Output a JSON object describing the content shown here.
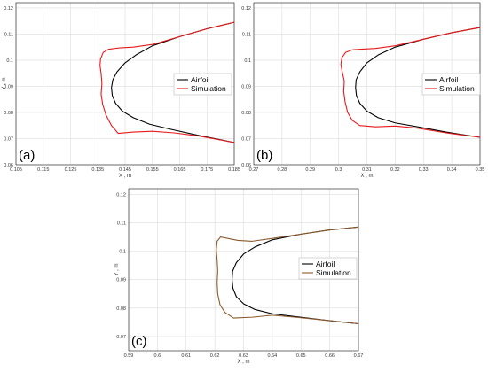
{
  "colors": {
    "airfoil": "#000000",
    "simulation": "#e8191b",
    "simulation_c": "#8b5a2b",
    "grid": "#dcdcdc",
    "axis": "#333333"
  },
  "chart_data": [
    {
      "type": "line",
      "panel_label": "(a)",
      "xlabel": "X , m",
      "ylabel": "Y , m",
      "xlim": [
        0.105,
        0.185
      ],
      "ylim": [
        0.06,
        0.122
      ],
      "xticks": [
        0.105,
        0.115,
        0.125,
        0.135,
        0.145,
        0.155,
        0.165,
        0.175,
        0.185
      ],
      "xtick_labels": [
        "0.105",
        "0.115",
        "0.125",
        "0.135",
        "0.145",
        "0.155",
        "0.165",
        "0.175",
        "0.185"
      ],
      "yticks": [
        0.06,
        0.07,
        0.08,
        0.09,
        0.1,
        0.11,
        0.12
      ],
      "ytick_labels": [
        "0.06",
        "0.07",
        "0.08",
        "0.09",
        "0.1",
        "0.11",
        "0.12"
      ],
      "grid": true,
      "legend": "center-right",
      "series": [
        {
          "name": "Airfoil",
          "x": [
            0.185,
            0.175,
            0.165,
            0.155,
            0.149,
            0.145,
            0.142,
            0.1405,
            0.14,
            0.1403,
            0.1415,
            0.144,
            0.148,
            0.154,
            0.162,
            0.172,
            0.185
          ],
          "y": [
            0.1145,
            0.112,
            0.109,
            0.1055,
            0.102,
            0.099,
            0.0955,
            0.0925,
            0.0895,
            0.0865,
            0.0835,
            0.0805,
            0.078,
            0.0755,
            0.0735,
            0.0712,
            0.0685
          ]
        },
        {
          "name": "Simulation",
          "x": [
            0.185,
            0.175,
            0.165,
            0.155,
            0.148,
            0.143,
            0.139,
            0.137,
            0.136,
            0.1358,
            0.1362,
            0.1365,
            0.1362,
            0.1368,
            0.138,
            0.14,
            0.1425,
            0.148,
            0.155,
            0.163,
            0.172,
            0.185
          ],
          "y": [
            0.1145,
            0.112,
            0.109,
            0.106,
            0.105,
            0.1047,
            0.1042,
            0.103,
            0.1005,
            0.098,
            0.095,
            0.091,
            0.087,
            0.083,
            0.079,
            0.075,
            0.072,
            0.0725,
            0.0728,
            0.0722,
            0.071,
            0.0685
          ]
        }
      ]
    },
    {
      "type": "line",
      "panel_label": "(b)",
      "xlabel": "X , m",
      "ylabel": "",
      "xlim": [
        0.27,
        0.35
      ],
      "ylim": [
        0.06,
        0.122
      ],
      "xticks": [
        0.27,
        0.28,
        0.29,
        0.3,
        0.31,
        0.32,
        0.33,
        0.34,
        0.35
      ],
      "xtick_labels": [
        "0.27",
        "0.28",
        "0.29",
        "0.3",
        "0.31",
        "0.32",
        "0.33",
        "0.34",
        "0.35"
      ],
      "yticks": [
        0.06,
        0.07,
        0.08,
        0.09,
        0.1,
        0.11,
        0.12
      ],
      "ytick_labels": [
        "0.06",
        "0.07",
        "0.08",
        "0.09",
        "0.1",
        "0.11",
        "0.12"
      ],
      "grid": true,
      "legend": "center-right",
      "series": [
        {
          "name": "Airfoil",
          "x": [
            0.35,
            0.34,
            0.33,
            0.32,
            0.314,
            0.31,
            0.3075,
            0.3062,
            0.306,
            0.3063,
            0.3075,
            0.31,
            0.314,
            0.32,
            0.328,
            0.338,
            0.35
          ],
          "y": [
            0.1125,
            0.1105,
            0.108,
            0.105,
            0.102,
            0.099,
            0.0955,
            0.0925,
            0.0895,
            0.0865,
            0.0835,
            0.0805,
            0.078,
            0.076,
            0.0745,
            0.0725,
            0.0705
          ]
        },
        {
          "name": "Simulation",
          "x": [
            0.35,
            0.34,
            0.33,
            0.32,
            0.313,
            0.308,
            0.305,
            0.3025,
            0.3012,
            0.3008,
            0.3012,
            0.302,
            0.3018,
            0.3023,
            0.3032,
            0.3048,
            0.3075,
            0.313,
            0.32,
            0.328,
            0.338,
            0.35
          ],
          "y": [
            0.1125,
            0.1105,
            0.108,
            0.1055,
            0.1045,
            0.1042,
            0.104,
            0.103,
            0.101,
            0.0985,
            0.096,
            0.092,
            0.088,
            0.084,
            0.08,
            0.077,
            0.075,
            0.0745,
            0.0748,
            0.074,
            0.0722,
            0.0705
          ]
        }
      ]
    },
    {
      "type": "line",
      "panel_label": "(c)",
      "xlabel": "X , m",
      "ylabel": "Y , m",
      "xlim": [
        0.59,
        0.67
      ],
      "ylim": [
        0.065,
        0.122
      ],
      "xticks": [
        0.59,
        0.6,
        0.61,
        0.62,
        0.63,
        0.64,
        0.65,
        0.66,
        0.67
      ],
      "xtick_labels": [
        "0.59",
        "0.6",
        "0.61",
        "0.62",
        "0.63",
        "0.64",
        "0.65",
        "0.66",
        "0.67"
      ],
      "yticks": [
        0.07,
        0.08,
        0.09,
        0.1,
        0.11,
        0.12
      ],
      "ytick_labels": [
        "0.07",
        "0.08",
        "0.09",
        "0.1",
        "0.11",
        "0.12"
      ],
      "grid": true,
      "legend": "center-right",
      "series": [
        {
          "name": "Airfoil",
          "x": [
            0.67,
            0.66,
            0.65,
            0.64,
            0.634,
            0.63,
            0.6275,
            0.6262,
            0.626,
            0.6263,
            0.6275,
            0.63,
            0.634,
            0.64,
            0.648,
            0.658,
            0.67
          ],
          "y": [
            0.1085,
            0.1075,
            0.106,
            0.104,
            0.1015,
            0.099,
            0.096,
            0.093,
            0.09,
            0.087,
            0.084,
            0.0815,
            0.0795,
            0.078,
            0.077,
            0.0758,
            0.0745
          ]
        },
        {
          "name": "Simulation",
          "x": [
            0.67,
            0.66,
            0.65,
            0.64,
            0.633,
            0.628,
            0.6245,
            0.622,
            0.6208,
            0.6205,
            0.6208,
            0.621,
            0.6208,
            0.621,
            0.6218,
            0.6235,
            0.6265,
            0.633,
            0.64,
            0.648,
            0.658,
            0.67
          ],
          "y": [
            0.1085,
            0.1075,
            0.106,
            0.1045,
            0.1035,
            0.1038,
            0.1045,
            0.105,
            0.1035,
            0.1005,
            0.097,
            0.093,
            0.089,
            0.085,
            0.0812,
            0.0785,
            0.0765,
            0.0768,
            0.0775,
            0.0768,
            0.0758,
            0.0745
          ]
        }
      ]
    }
  ]
}
